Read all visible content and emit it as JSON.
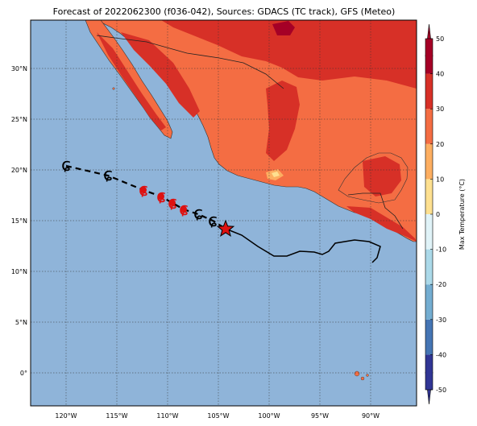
{
  "title": "Forecast of 2022062300 (f036-042), Sources: GDACS (TC track), GFS (Meteo)",
  "colors": {
    "ocean": "#8fb4d9",
    "land_default": "#f46d43",
    "land_hot": "#d73027",
    "land_very_hot": "#a50026",
    "land_warm": "#fdae61",
    "land_mild": "#fee090",
    "track_forecast": "#000000",
    "storm_marker_red": "#dd1111",
    "current_position": "#dd1111",
    "grid": "#333333"
  },
  "lon_ticks": [
    "120°W",
    "115°W",
    "110°W",
    "105°W",
    "100°W",
    "95°W",
    "90°W"
  ],
  "lat_ticks": [
    "30°N",
    "25°N",
    "20°N",
    "15°N",
    "10°N",
    "5°N",
    "0°"
  ],
  "colorbar": {
    "label": "Max Temperature (°C)",
    "ticks": [
      "50",
      "40",
      "30",
      "20",
      "10",
      "0",
      "-10",
      "-20",
      "-30",
      "-40",
      "-50"
    ],
    "colors": [
      "#313695",
      "#4575b4",
      "#74add1",
      "#abd9e9",
      "#e0f3f8",
      "#ffffbf",
      "#fee090",
      "#fdae61",
      "#f46d43",
      "#d73027",
      "#a50026"
    ]
  },
  "storm_track": {
    "forecast_points_icon": "tropical-cyclone-icon",
    "current_marker_icon": "star-icon"
  }
}
